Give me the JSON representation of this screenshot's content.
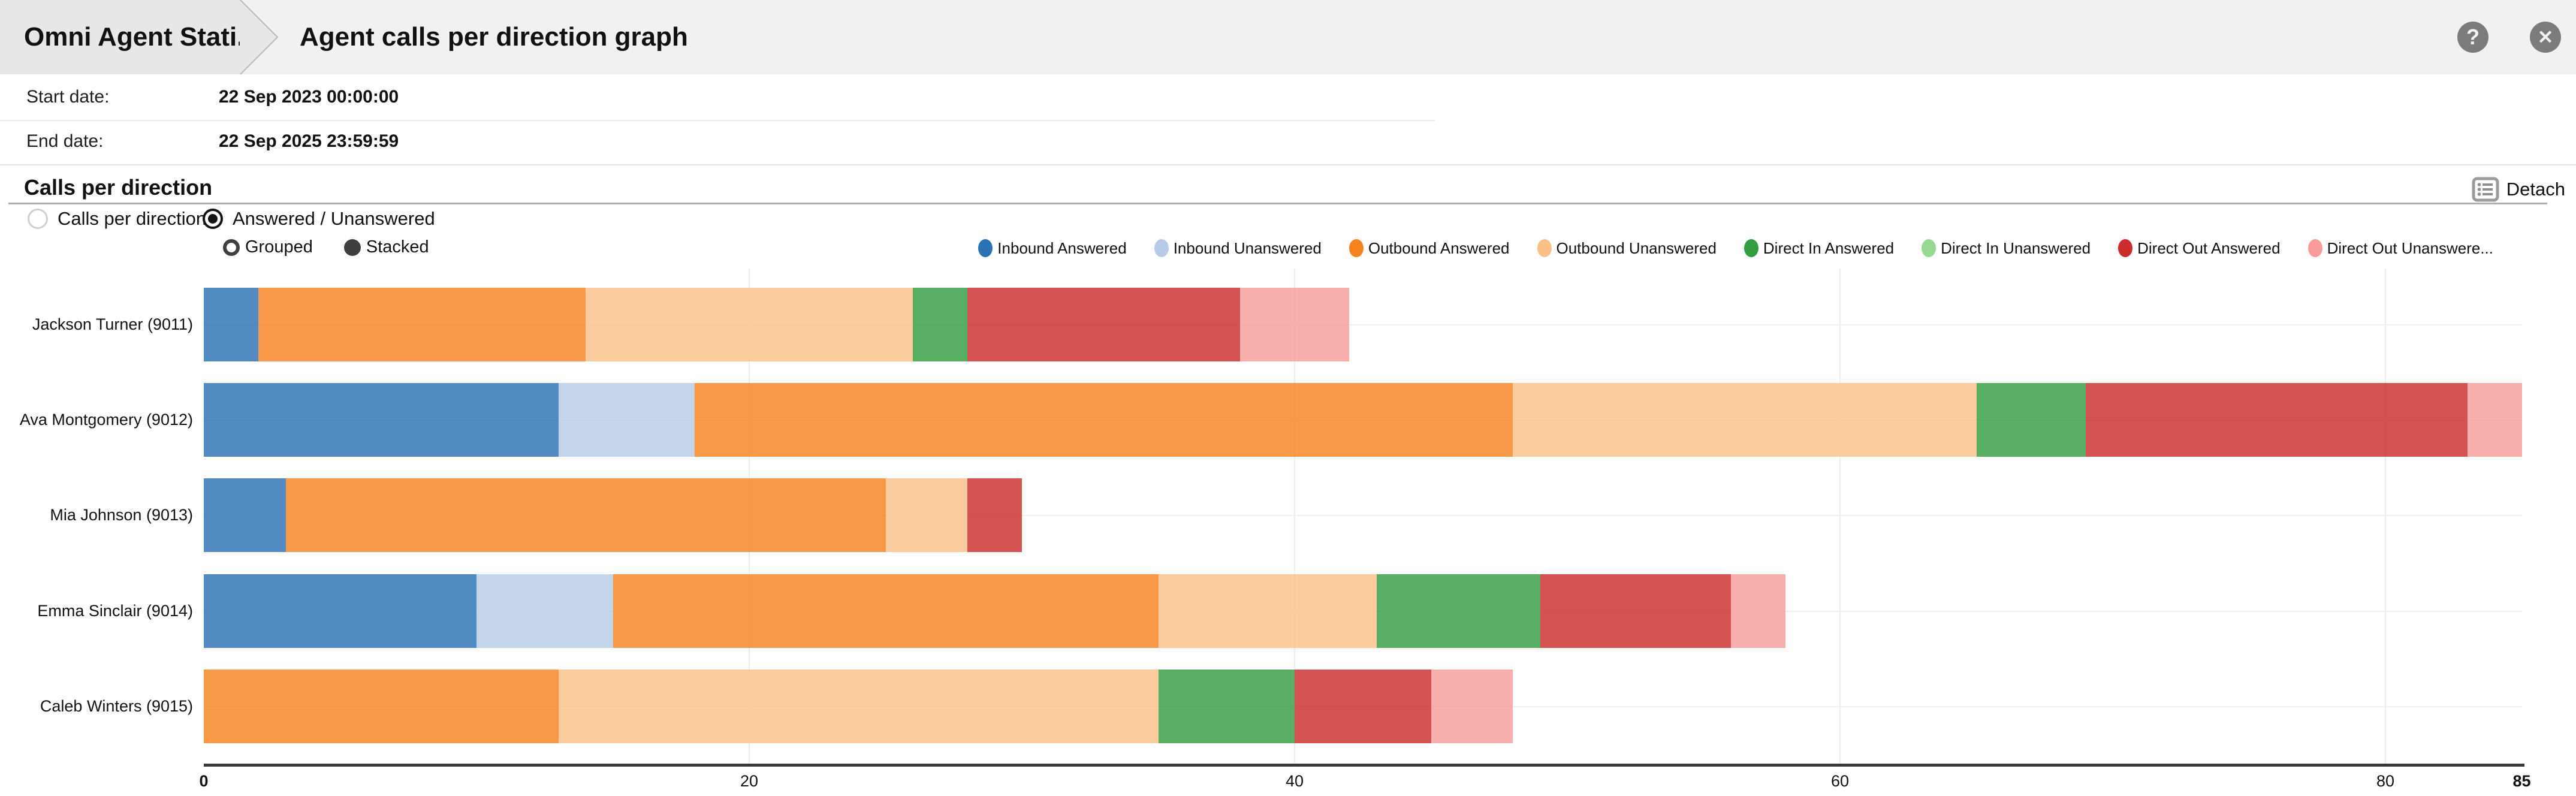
{
  "header": {
    "breadcrumb": "Omni Agent Stati...",
    "title": "Agent calls per direction graph",
    "help_icon": "?",
    "close_icon": "✕"
  },
  "info": {
    "start_label": "Start date:",
    "start_value": "22 Sep 2023 00:00:00",
    "end_label": "End date:",
    "end_value": "22 Sep 2025 23:59:59",
    "detach_label": "Detach"
  },
  "section": {
    "heading": "Calls per direction",
    "radios": [
      {
        "label": "Calls per direction",
        "selected": false
      },
      {
        "label": "Answered / Unanswered",
        "selected": true
      }
    ],
    "mode_toggles": [
      {
        "label": "Grouped",
        "selected": false
      },
      {
        "label": "Stacked",
        "selected": true
      }
    ]
  },
  "chart_data": {
    "type": "bar",
    "orientation": "horizontal",
    "stacked": true,
    "grid": true,
    "legend_position": "top-right",
    "xlim": [
      0,
      85
    ],
    "xticks": [
      0,
      20,
      40,
      60,
      80,
      85
    ],
    "categories": [
      "Jackson Turner (9011)",
      "Ava Montgomery (9012)",
      "Mia Johnson (9013)",
      "Emma Sinclair (9014)",
      "Caleb Winters (9015)"
    ],
    "series": [
      {
        "name": "Inbound Answered",
        "legend_label": "Inbound Answered",
        "color": "#2c71b5",
        "values": [
          2,
          13,
          3,
          10,
          0
        ]
      },
      {
        "name": "Inbound Unanswered",
        "legend_label": "Inbound Unanswered",
        "color": "#b7cbe7",
        "values": [
          0,
          5,
          0,
          5,
          0
        ]
      },
      {
        "name": "Outbound Answered",
        "legend_label": "Outbound Answered",
        "color": "#f5821f",
        "values": [
          12,
          30,
          22,
          20,
          13
        ]
      },
      {
        "name": "Outbound Unanswered",
        "legend_label": "Outbound Unanswered",
        "color": "#f9c189",
        "values": [
          12,
          17,
          3,
          8,
          22
        ]
      },
      {
        "name": "Direct In Answered",
        "legend_label": "Direct In Answered",
        "color": "#339e41",
        "values": [
          2,
          4,
          0,
          6,
          5
        ]
      },
      {
        "name": "Direct In Unanswered",
        "legend_label": "Direct In Unanswered",
        "color": "#97d893",
        "values": [
          0,
          0,
          0,
          0,
          0
        ]
      },
      {
        "name": "Direct Out Answered",
        "legend_label": "Direct Out Answered",
        "color": "#cc2c2c",
        "values": [
          10,
          14,
          2,
          7,
          5
        ]
      },
      {
        "name": "Direct Out Unanswered",
        "legend_label": "Direct Out Unanswere...",
        "color": "#f79c9b",
        "values": [
          4,
          2,
          0,
          2,
          3
        ]
      }
    ]
  }
}
